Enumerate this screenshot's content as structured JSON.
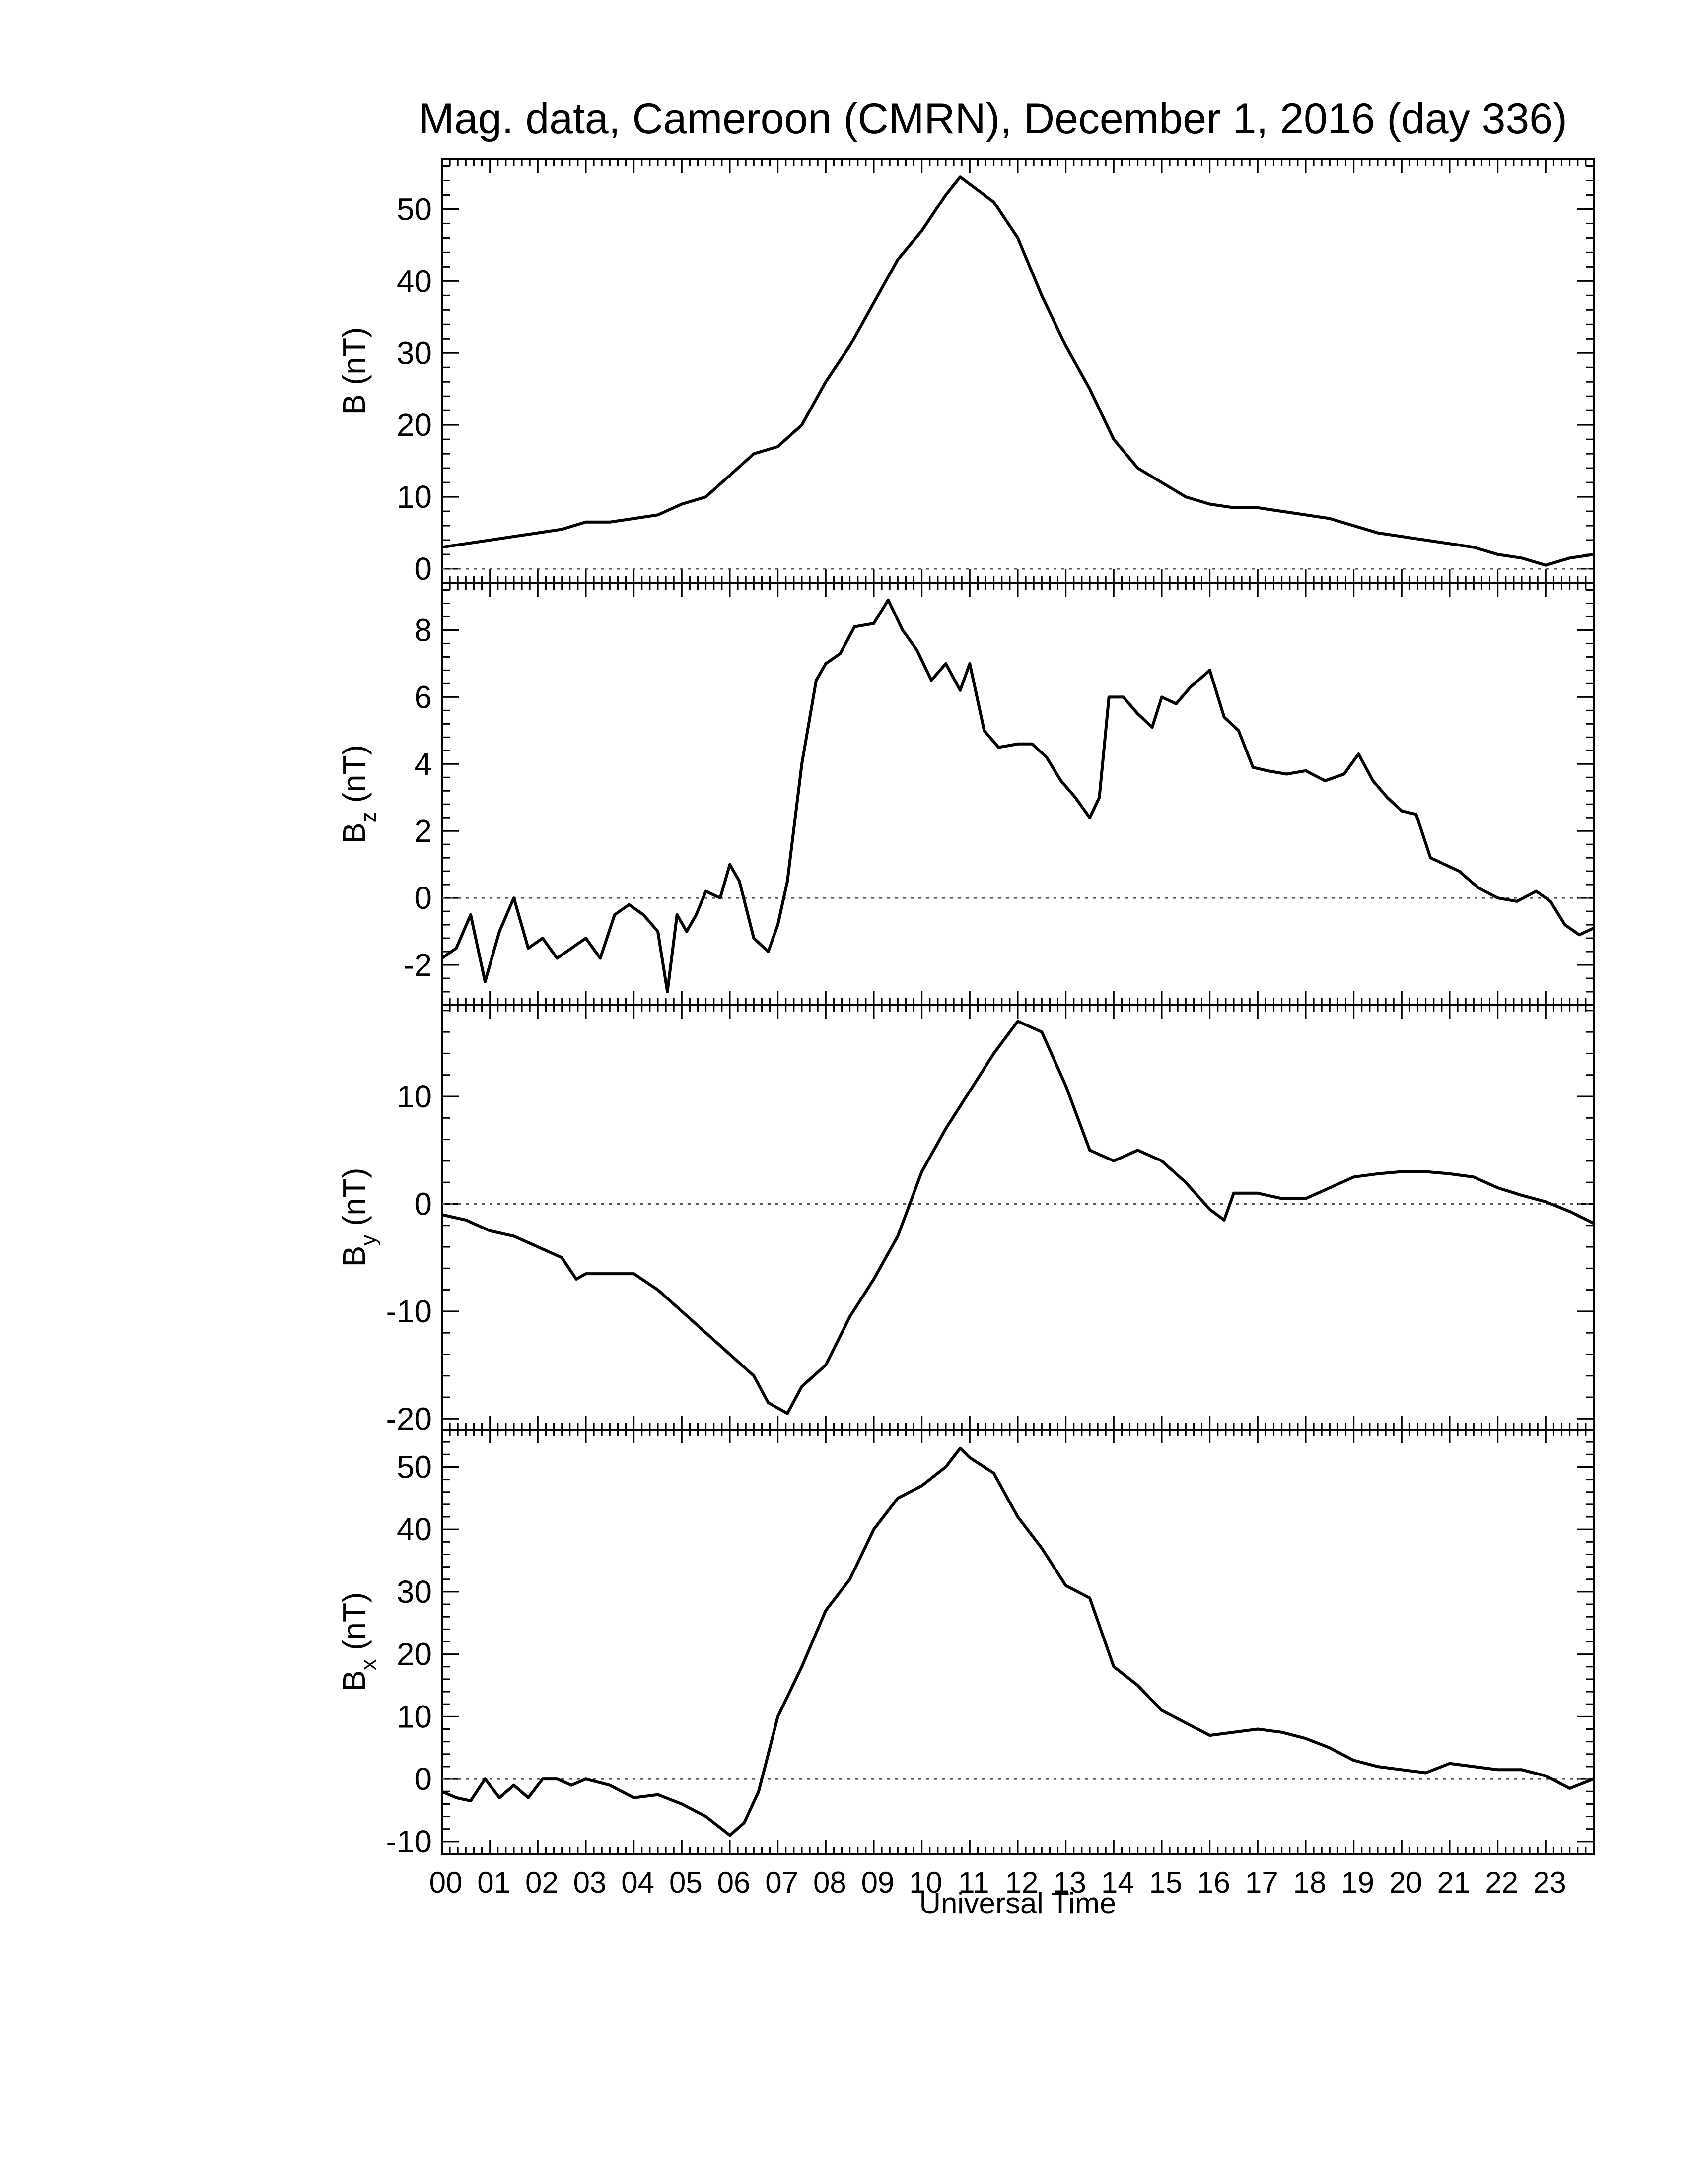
{
  "title": "Mag. data, Cameroon (CMRN), December 1, 2016 (day 336)",
  "xlabel": "Universal Time",
  "chart_data": [
    {
      "type": "line",
      "ylabel": "B (nT)",
      "ylabel_main": "B",
      "ylabel_sub": "",
      "ylabel_unit": " (nT)",
      "ylim": [
        -2,
        57
      ],
      "yticks": [
        0,
        10,
        20,
        30,
        40,
        50
      ],
      "ytick_labels": [
        "0",
        "10",
        "20",
        "30",
        "40",
        "50"
      ],
      "zero_line": true,
      "series": [
        {
          "x": [
            0,
            0.5,
            1,
            1.5,
            2,
            2.5,
            3,
            3.5,
            4,
            4.5,
            5,
            5.5,
            6,
            6.5,
            7,
            7.5,
            8,
            8.5,
            9,
            9.5,
            10,
            10.5,
            10.8,
            11,
            11.5,
            12,
            12.5,
            13,
            13.5,
            14,
            14.5,
            15,
            15.5,
            16,
            16.5,
            17,
            17.5,
            18,
            18.5,
            19,
            19.5,
            20,
            20.5,
            21,
            21.5,
            22,
            22.5,
            23,
            23.5,
            24
          ],
          "y": [
            3,
            3.5,
            4,
            4.5,
            5,
            5.5,
            6.5,
            6.5,
            7,
            7.5,
            9,
            10,
            13,
            16,
            17,
            20,
            26,
            31,
            37,
            43,
            47,
            52,
            54.5,
            53.5,
            51,
            46,
            38,
            31,
            25,
            18,
            14,
            12,
            10,
            9,
            8.5,
            8.5,
            8,
            7.5,
            7,
            6,
            5,
            4.5,
            4,
            3.5,
            3,
            2,
            1.5,
            0.5,
            1.5,
            2
          ]
        }
      ]
    },
    {
      "type": "line",
      "ylabel": "Bz (nT)",
      "ylabel_main": "B",
      "ylabel_sub": "z",
      "ylabel_unit": " (nT)",
      "ylim": [
        -3.2,
        9.4
      ],
      "yticks": [
        -2,
        0,
        2,
        4,
        6,
        8
      ],
      "ytick_labels": [
        "-2",
        "0",
        "2",
        "4",
        "6",
        "8"
      ],
      "zero_line": true,
      "series": [
        {
          "x": [
            0,
            0.3,
            0.6,
            0.9,
            1.2,
            1.5,
            1.8,
            2.1,
            2.4,
            2.7,
            3,
            3.3,
            3.6,
            3.9,
            4.2,
            4.5,
            4.7,
            4.9,
            5.1,
            5.3,
            5.5,
            5.8,
            6,
            6.2,
            6.5,
            6.8,
            7,
            7.2,
            7.5,
            7.8,
            8,
            8.3,
            8.6,
            9,
            9.3,
            9.6,
            9.9,
            10.2,
            10.5,
            10.8,
            11,
            11.3,
            11.6,
            12,
            12.3,
            12.6,
            12.9,
            13.2,
            13.5,
            13.7,
            13.9,
            14.2,
            14.5,
            14.8,
            15,
            15.3,
            15.6,
            16,
            16.3,
            16.6,
            16.9,
            17.2,
            17.6,
            18,
            18.4,
            18.8,
            19.1,
            19.4,
            19.7,
            20,
            20.3,
            20.6,
            20.9,
            21.2,
            21.6,
            22,
            22.4,
            22.8,
            23.1,
            23.4,
            23.7,
            24
          ],
          "y": [
            -1.8,
            -1.5,
            -0.5,
            -2.5,
            -1,
            0,
            -1.5,
            -1.2,
            -1.8,
            -1.5,
            -1.2,
            -1.8,
            -0.5,
            -0.2,
            -0.5,
            -1,
            -2.8,
            -0.5,
            -1,
            -0.5,
            0.2,
            0,
            1,
            0.5,
            -1.2,
            -1.6,
            -0.8,
            0.5,
            4,
            6.5,
            7,
            7.3,
            8.1,
            8.2,
            8.9,
            8,
            7.4,
            6.5,
            7,
            6.2,
            7,
            5,
            4.5,
            4.6,
            4.6,
            4.2,
            3.5,
            3,
            2.4,
            3,
            6,
            6,
            5.5,
            5.1,
            6,
            5.8,
            6.3,
            6.8,
            5.4,
            5,
            3.9,
            3.8,
            3.7,
            3.8,
            3.5,
            3.7,
            4.3,
            3.5,
            3,
            2.6,
            2.5,
            1.2,
            1,
            0.8,
            0.3,
            0,
            -0.1,
            0.2,
            -0.1,
            -0.8,
            -1.1,
            -0.9
          ]
        }
      ]
    },
    {
      "type": "line",
      "ylabel": "By (nT)",
      "ylabel_main": "B",
      "ylabel_sub": "y",
      "ylabel_unit": " (nT)",
      "ylim": [
        -21,
        18.5
      ],
      "yticks": [
        -20,
        -10,
        0,
        10
      ],
      "ytick_labels": [
        "-20",
        "-10",
        "0",
        "10"
      ],
      "zero_line": true,
      "series": [
        {
          "x": [
            0,
            0.5,
            1,
            1.5,
            2,
            2.5,
            2.8,
            3,
            3.5,
            4,
            4.5,
            5,
            5.5,
            6,
            6.5,
            6.8,
            7,
            7.2,
            7.5,
            8,
            8.5,
            9,
            9.5,
            10,
            10.5,
            11,
            11.5,
            12,
            12.5,
            13,
            13.5,
            14,
            14.5,
            15,
            15.5,
            16,
            16.3,
            16.5,
            17,
            17.5,
            18,
            18.5,
            19,
            19.5,
            20,
            20.5,
            21,
            21.5,
            22,
            22.5,
            23,
            23.5,
            24
          ],
          "y": [
            -1,
            -1.5,
            -2.5,
            -3,
            -4,
            -5,
            -7,
            -6.5,
            -6.5,
            -6.5,
            -8,
            -10,
            -12,
            -14,
            -16,
            -18.5,
            -19,
            -19.5,
            -17,
            -15,
            -10.5,
            -7,
            -3,
            3,
            7,
            10.5,
            14,
            17,
            16,
            11,
            5,
            4,
            5,
            4,
            2,
            -0.5,
            -1.5,
            1,
            1,
            0.5,
            0.5,
            1.5,
            2.5,
            2.8,
            3,
            3,
            2.8,
            2.5,
            1.5,
            0.8,
            0.2,
            -0.7,
            -1.8
          ]
        }
      ]
    },
    {
      "type": "line",
      "ylabel": "Bx (nT)",
      "ylabel_main": "B",
      "ylabel_sub": "x",
      "ylabel_unit": " (nT)",
      "ylim": [
        -12,
        56
      ],
      "yticks": [
        -10,
        0,
        10,
        20,
        30,
        40,
        50
      ],
      "ytick_labels": [
        "-10",
        "0",
        "10",
        "20",
        "30",
        "40",
        "50"
      ],
      "zero_line": true,
      "series": [
        {
          "x": [
            0,
            0.3,
            0.6,
            0.9,
            1.2,
            1.5,
            1.8,
            2.1,
            2.4,
            2.7,
            3,
            3.5,
            4,
            4.5,
            5,
            5.5,
            6,
            6.3,
            6.6,
            7,
            7.5,
            8,
            8.5,
            9,
            9.5,
            10,
            10.5,
            10.8,
            11,
            11.5,
            12,
            12.5,
            13,
            13.5,
            14,
            14.5,
            15,
            15.5,
            16,
            16.5,
            17,
            17.5,
            18,
            18.5,
            19,
            19.5,
            20,
            20.5,
            21,
            21.5,
            22,
            22.5,
            23,
            23.5,
            24
          ],
          "y": [
            -2,
            -3,
            -3.5,
            0,
            -3,
            -1,
            -3,
            0,
            0,
            -1,
            0,
            -1,
            -3,
            -2.5,
            -4,
            -6,
            -9,
            -7,
            -2,
            10,
            18,
            27,
            32,
            40,
            45,
            47,
            50,
            53,
            51.5,
            49,
            42,
            37,
            31,
            29,
            18,
            15,
            11,
            9,
            7,
            7.5,
            8,
            7.5,
            6.5,
            5,
            3,
            2,
            1.5,
            1,
            2.5,
            2,
            1.5,
            1.5,
            0.5,
            -1.5,
            0
          ]
        }
      ]
    }
  ],
  "xaxis": {
    "range": [
      0,
      24
    ],
    "ticks": [
      0,
      1,
      2,
      3,
      4,
      5,
      6,
      7,
      8,
      9,
      10,
      11,
      12,
      13,
      14,
      15,
      16,
      17,
      18,
      19,
      20,
      21,
      22,
      23
    ],
    "tick_labels": [
      "00",
      "01",
      "02",
      "03",
      "04",
      "05",
      "06",
      "07",
      "08",
      "09",
      "10",
      "11",
      "12",
      "13",
      "14",
      "15",
      "16",
      "17",
      "18",
      "19",
      "20",
      "21",
      "22",
      "23"
    ]
  },
  "colors": {
    "line": "#000000",
    "zero_line": "#555555",
    "background": "#ffffff"
  }
}
